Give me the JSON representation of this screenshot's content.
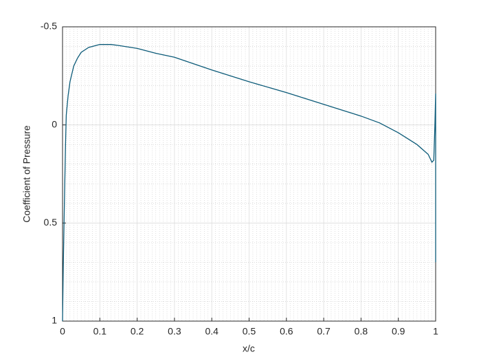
{
  "chart_data": {
    "type": "line",
    "xlabel": "x/c",
    "ylabel": "Coefficient of Pressure",
    "x": [
      0,
      0.002,
      0.005,
      0.008,
      0.01,
      0.015,
      0.02,
      0.03,
      0.04,
      0.05,
      0.07,
      0.1,
      0.13,
      0.15,
      0.2,
      0.25,
      0.3,
      0.4,
      0.5,
      0.6,
      0.7,
      0.8,
      0.85,
      0.9,
      0.95,
      0.98,
      0.99,
      0.995,
      0.998,
      1,
      1
    ],
    "series": [
      {
        "color": "#0b5a78",
        "values": [
          1,
          0.72,
          0.4,
          0.1,
          -0.05,
          -0.15,
          -0.22,
          -0.3,
          -0.34,
          -0.37,
          -0.395,
          -0.41,
          -0.41,
          -0.405,
          -0.39,
          -0.365,
          -0.345,
          -0.28,
          -0.22,
          -0.165,
          -0.105,
          -0.045,
          -0.01,
          0.04,
          0.1,
          0.15,
          0.19,
          0.18,
          0.0,
          -0.16,
          0.7
        ]
      }
    ],
    "xlim": [
      0,
      1
    ],
    "xticks": [
      0,
      0.1,
      0.2,
      0.3,
      0.4,
      0.5,
      0.6,
      0.7,
      0.8,
      0.9,
      1
    ],
    "ylim": [
      -0.5,
      1
    ],
    "yticks": [
      -0.5,
      0,
      0.5,
      1
    ],
    "y_reversed": true,
    "grid": true,
    "minor_grid": true
  }
}
